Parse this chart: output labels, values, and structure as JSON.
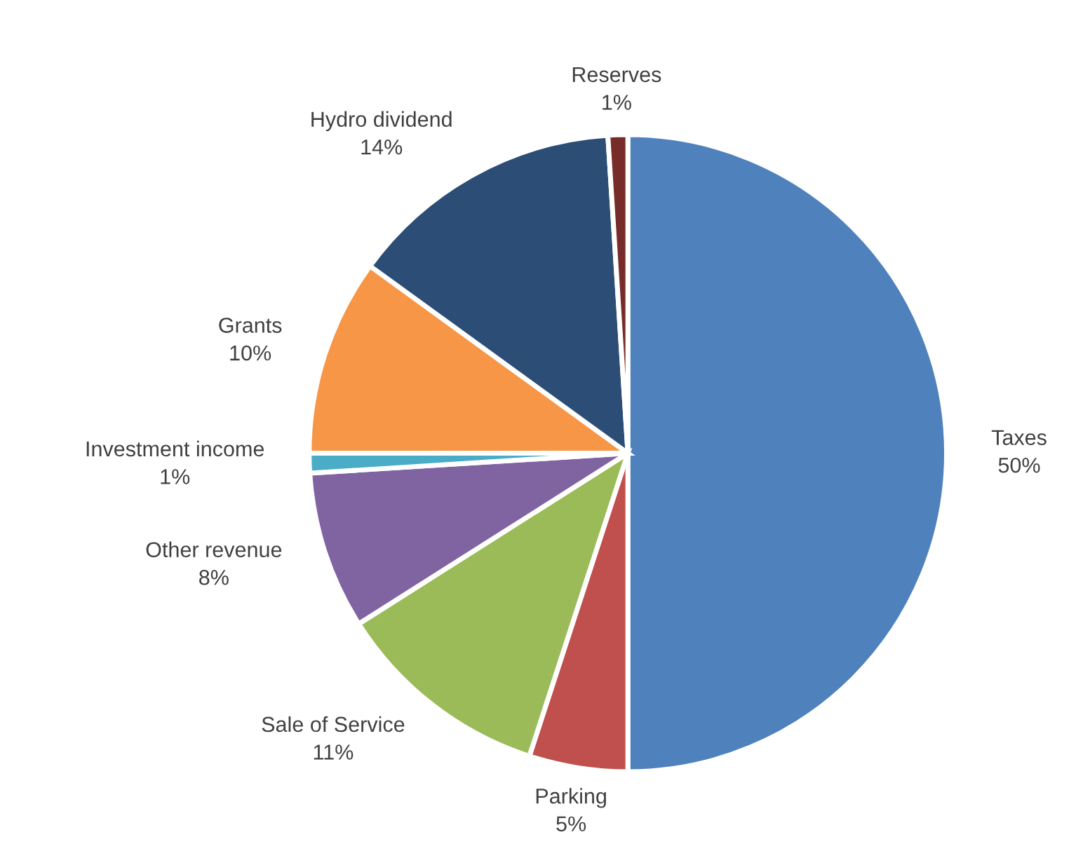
{
  "chart_data": {
    "type": "pie",
    "categories": [
      "Taxes",
      "Parking",
      "Sale of Service",
      "Other revenue",
      "Investment income",
      "Grants",
      "Hydro dividend",
      "Reserves"
    ],
    "values": [
      50,
      5,
      11,
      8,
      1,
      10,
      14,
      1
    ],
    "colors": [
      "#4f81bd",
      "#c0504d",
      "#9bbb59",
      "#8064a2",
      "#4bacc6",
      "#f79646",
      "#2c4d75",
      "#772c2a"
    ],
    "value_labels": [
      "50%",
      "5%",
      "11%",
      "8%",
      "1%",
      "10%",
      "14%",
      "1%"
    ],
    "legend": false
  }
}
